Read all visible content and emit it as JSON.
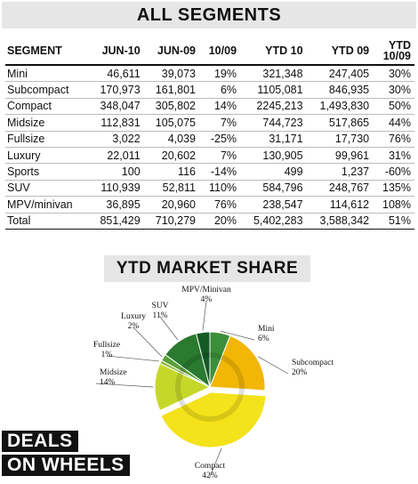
{
  "title": "ALL SEGMENTS",
  "table": {
    "headers": [
      "SEGMENT",
      "JUN-10",
      "JUN-09",
      "10/09",
      "YTD 10",
      "YTD 09",
      "YTD\n10/09"
    ],
    "rows": [
      [
        "Mini",
        "46,611",
        "39,073",
        "19%",
        "321,348",
        "247,405",
        "30%"
      ],
      [
        "Subcompact",
        "170,973",
        "161,801",
        "6%",
        "1105,081",
        "846,935",
        "30%"
      ],
      [
        "Compact",
        "348,047",
        "305,802",
        "14%",
        "2245,213",
        "1,493,830",
        "50%"
      ],
      [
        "Midsize",
        "112,831",
        "105,075",
        "7%",
        "744,723",
        "517,865",
        "44%"
      ],
      [
        "Fullsize",
        "3,022",
        "4,039",
        "-25%",
        "31,171",
        "17,730",
        "76%"
      ],
      [
        "Luxury",
        "22,011",
        "20,602",
        "7%",
        "130,905",
        "99,961",
        "31%"
      ],
      [
        "Sports",
        "100",
        "116",
        "-14%",
        "499",
        "1,237",
        "-60%"
      ],
      [
        "SUV",
        "110,939",
        "52,811",
        "110%",
        "584,796",
        "248,767",
        "135%"
      ],
      [
        "MPV/minivan",
        "36,895",
        "20,960",
        "76%",
        "238,547",
        "114,612",
        "108%"
      ],
      [
        "Total",
        "851,429",
        "710,279",
        "20%",
        "5,402,283",
        "3,588,342",
        "51%"
      ]
    ]
  },
  "chart_data": {
    "type": "pie",
    "title": "YTD MARKET SHARE",
    "slices": [
      {
        "label": "Mini",
        "value": 6,
        "pct_label": "6%",
        "color": "#3c8f3a"
      },
      {
        "label": "Subcompact",
        "value": 20,
        "pct_label": "20%",
        "color": "#f2b705"
      },
      {
        "label": "Compact",
        "value": 42,
        "pct_label": "42%",
        "color": "#f4e21a"
      },
      {
        "label": "Midsize",
        "value": 14,
        "pct_label": "14%",
        "color": "#c5d82a"
      },
      {
        "label": "Fullsize",
        "value": 1,
        "pct_label": "1%",
        "color": "#8fb83a"
      },
      {
        "label": "Luxury",
        "value": 2,
        "pct_label": "2%",
        "color": "#5aa03a"
      },
      {
        "label": "SUV",
        "value": 11,
        "pct_label": "11%",
        "color": "#2a7a30"
      },
      {
        "label": "MPV/Minivan",
        "value": 4,
        "pct_label": "4%",
        "color": "#145a24"
      }
    ]
  },
  "logo": {
    "line1": "DEALS",
    "line2": "ON WHEELS"
  }
}
